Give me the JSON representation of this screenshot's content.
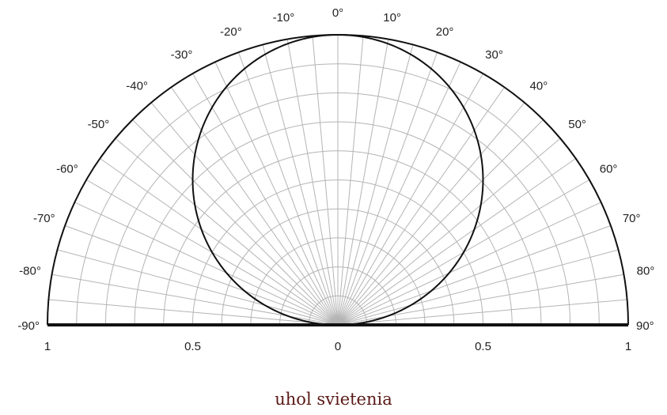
{
  "caption": "uhol svietenia",
  "colors": {
    "curve": "#111111",
    "grid": "#b4b4b4",
    "caption": "#5a1a17",
    "baseline": "#111111"
  },
  "chart_data": {
    "type": "polar",
    "title": "",
    "angle_range_deg": [
      -90,
      90
    ],
    "angle_tick_step_deg": 10,
    "angle_tick_labels": [
      "-90°",
      "-80°",
      "-70°",
      "-60°",
      "-50°",
      "-40°",
      "-30°",
      "-20°",
      "-10°",
      "0°",
      "10°",
      "20°",
      "30°",
      "40°",
      "50°",
      "60°",
      "70°",
      "80°",
      "90°"
    ],
    "radial_range": [
      0,
      1
    ],
    "radial_grid_step": 0.1,
    "radial_tick_labels": [
      "1",
      "0.5",
      "0",
      "0.5",
      "1"
    ],
    "grid": true,
    "series": [
      {
        "function": "cos(theta)",
        "description_values": {
          "angles_deg": [
            -90,
            -80,
            -70,
            -60,
            -50,
            -40,
            -30,
            -20,
            -10,
            0,
            10,
            20,
            30,
            40,
            50,
            60,
            70,
            80,
            90
          ],
          "r": [
            0,
            0.174,
            0.342,
            0.5,
            0.643,
            0.766,
            0.866,
            0.94,
            0.985,
            1,
            0.985,
            0.94,
            0.866,
            0.766,
            0.643,
            0.5,
            0.342,
            0.174,
            0
          ]
        }
      }
    ]
  }
}
